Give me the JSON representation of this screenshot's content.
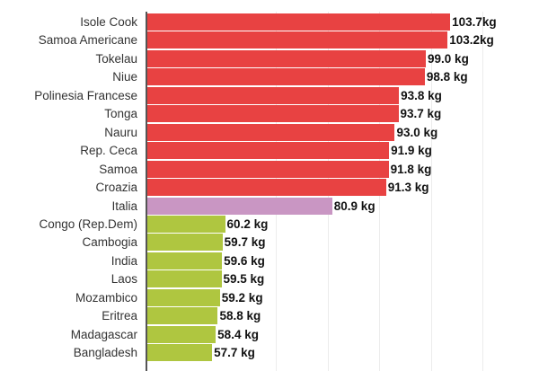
{
  "chart_data": {
    "type": "bar",
    "orientation": "horizontal",
    "title": "",
    "xlabel": "",
    "ylabel": "",
    "xlim": [
      45,
      110
    ],
    "gridlines_x": [
      70,
      80,
      90,
      100,
      110
    ],
    "grid": true,
    "legend": null,
    "unit": "kg",
    "categories": [
      "Isole Cook",
      "Samoa Americane",
      "Tokelau",
      "Niue",
      "Polinesia Francese",
      "Tonga",
      "Nauru",
      "Rep. Ceca",
      "Samoa",
      "Croazia",
      "Italia",
      "Congo (Rep.Dem)",
      "Cambogia",
      "India",
      "Laos",
      "Mozambico",
      "Eritrea",
      "Madagascar",
      "Bangladesh"
    ],
    "values": [
      103.7,
      103.2,
      99.0,
      98.8,
      93.8,
      93.7,
      93.0,
      91.9,
      91.8,
      91.3,
      80.9,
      60.2,
      59.7,
      59.6,
      59.5,
      59.2,
      58.8,
      58.4,
      57.7
    ],
    "value_labels": [
      "103.7kg",
      "103.2kg",
      "99.0 kg",
      "98.8 kg",
      "93.8 kg",
      "93.7 kg",
      "93.0 kg",
      "91.9 kg",
      "91.8 kg",
      "91.3 kg",
      "80.9 kg",
      "60.2 kg",
      "59.7 kg",
      "59.6 kg",
      "59.5 kg",
      "59.2 kg",
      "58.8 kg",
      "58.4 kg",
      "57.7 kg"
    ],
    "groups": [
      "heaviest",
      "heaviest",
      "heaviest",
      "heaviest",
      "heaviest",
      "heaviest",
      "heaviest",
      "heaviest",
      "heaviest",
      "heaviest",
      "italy",
      "lightest",
      "lightest",
      "lightest",
      "lightest",
      "lightest",
      "lightest",
      "lightest",
      "lightest"
    ]
  },
  "colors": {
    "heaviest": "#e84242",
    "italy": "#c996c3",
    "lightest": "#afc640",
    "gridline": "#ececec",
    "axis": "#555555"
  }
}
